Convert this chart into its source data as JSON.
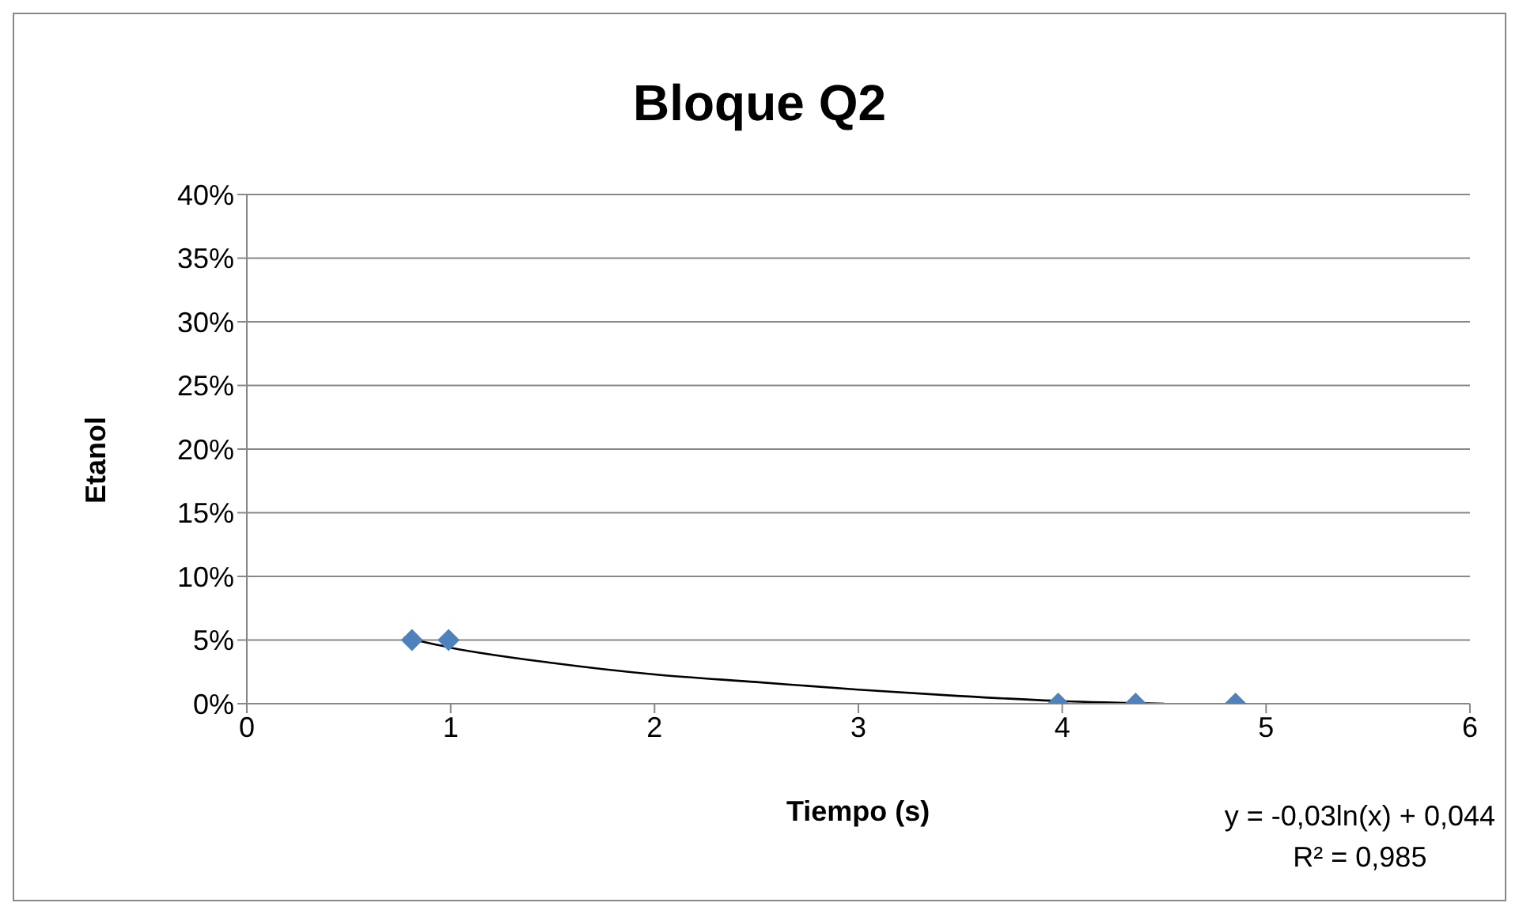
{
  "chart_data": {
    "type": "scatter",
    "title": "Bloque Q2",
    "xlabel": "Tiempo (s)",
    "ylabel": "Etanol",
    "xlim": [
      0,
      6
    ],
    "xticks": [
      0,
      1,
      2,
      3,
      4,
      5,
      6
    ],
    "ylim": [
      0,
      0.4
    ],
    "yticks": [
      {
        "value": 0,
        "label": "0%"
      },
      {
        "value": 0.05,
        "label": "5%"
      },
      {
        "value": 0.1,
        "label": "10%"
      },
      {
        "value": 0.15,
        "label": "15%"
      },
      {
        "value": 0.2,
        "label": "20%"
      },
      {
        "value": 0.25,
        "label": "25%"
      },
      {
        "value": 0.3,
        "label": "30%"
      },
      {
        "value": 0.35,
        "label": "35%"
      },
      {
        "value": 0.4,
        "label": "40%"
      }
    ],
    "grid": "y",
    "legend": false,
    "series": [
      {
        "marker": "diamond",
        "color": "#4f81bd",
        "x": [
          0.81,
          0.99,
          3.98,
          4.36,
          4.85
        ],
        "values": [
          0.05,
          0.05,
          0,
          0,
          0
        ]
      },
      {
        "type": "line",
        "marker": "none",
        "color": "#000000",
        "x": [
          0.77,
          1,
          1.5,
          2,
          2.5,
          3,
          3.5,
          4,
          4.5
        ],
        "values": [
          0.052,
          0.044,
          0.032,
          0.023,
          0.017,
          0.011,
          0.006,
          0.002,
          0
        ]
      }
    ],
    "annotations": [
      "y = -0,03ln(x) + 0,044",
      "R² = 0,985"
    ]
  }
}
